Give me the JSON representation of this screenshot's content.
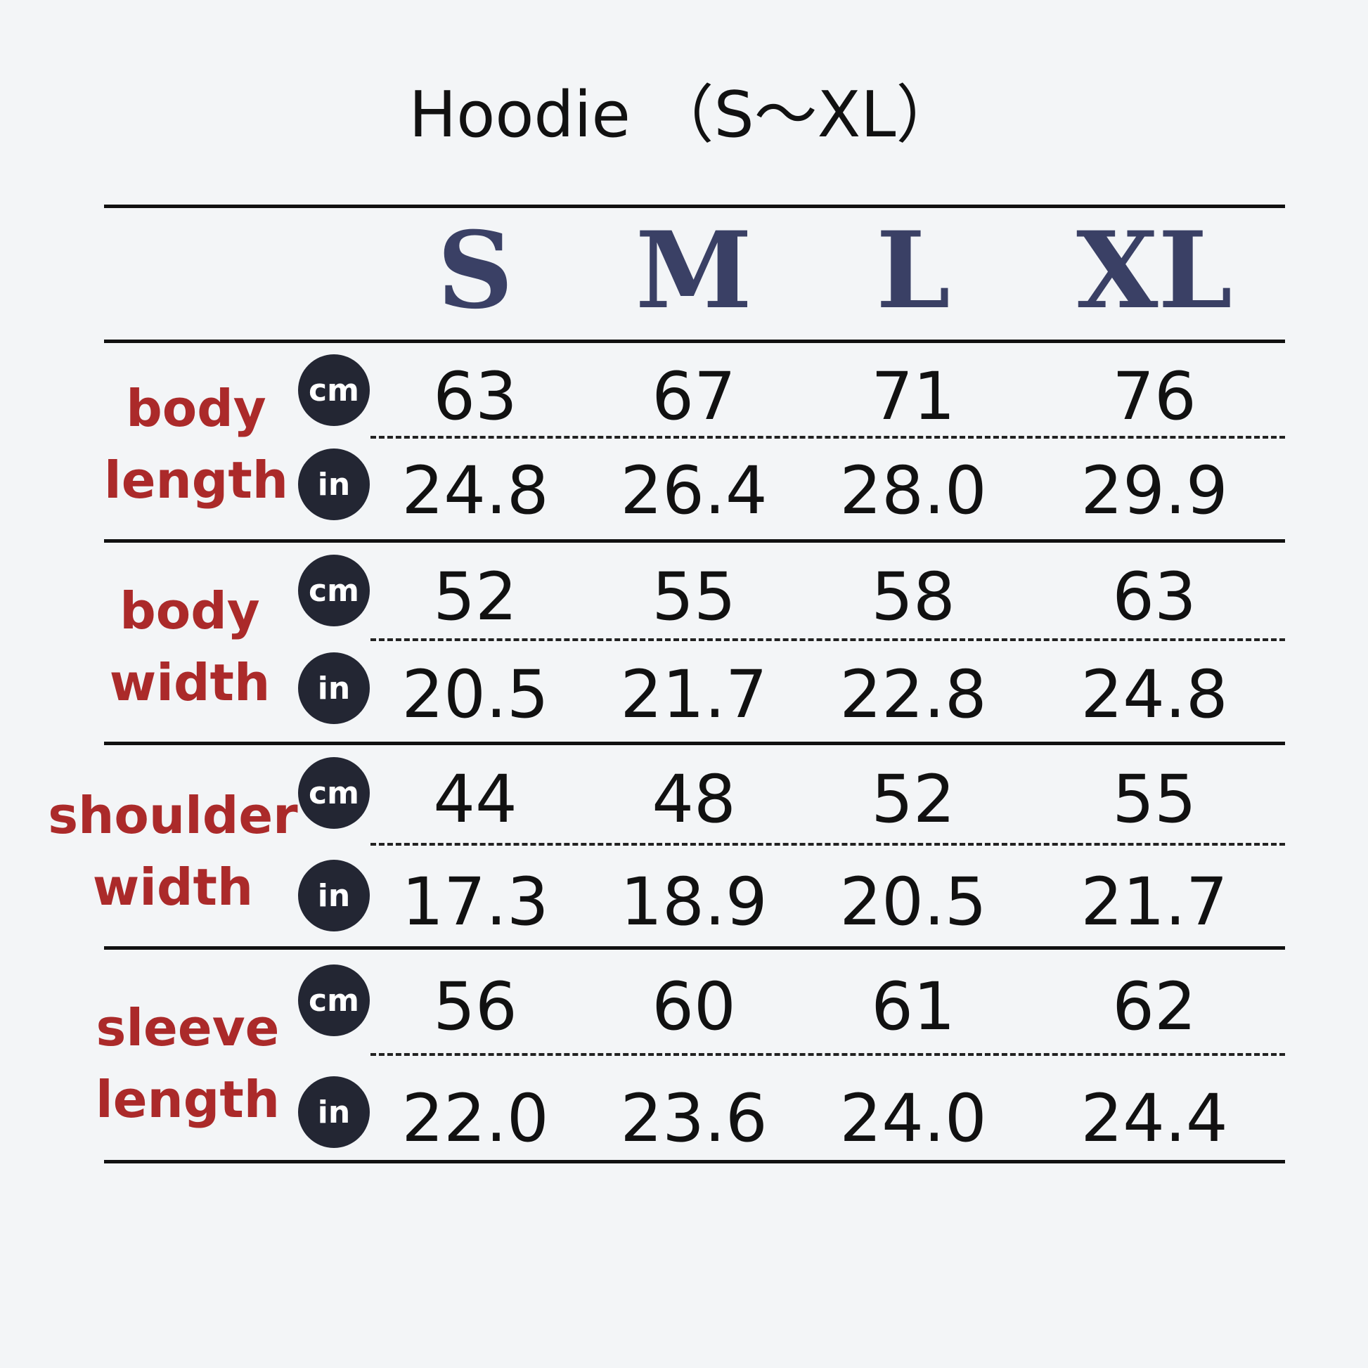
{
  "title": "Hoodie （S～XL）",
  "sizes": [
    "S",
    "M",
    "L",
    "XL"
  ],
  "units": {
    "cm": "cm",
    "in": "in"
  },
  "colors": {
    "label": "#ab2a2a",
    "header": "#3a4065",
    "unit_badge": "#232633",
    "background": "#f3f5f7"
  },
  "rows": [
    {
      "label1": "body",
      "label2": "length",
      "cm": [
        "63",
        "67",
        "71",
        "76"
      ],
      "in": [
        "24.8",
        "26.4",
        "28.0",
        "29.9"
      ]
    },
    {
      "label1": "body",
      "label2": "width",
      "cm": [
        "52",
        "55",
        "58",
        "63"
      ],
      "in": [
        "20.5",
        "21.7",
        "22.8",
        "24.8"
      ]
    },
    {
      "label1": "shoulder",
      "label2": "width",
      "cm": [
        "44",
        "48",
        "52",
        "55"
      ],
      "in": [
        "17.3",
        "18.9",
        "20.5",
        "21.7"
      ]
    },
    {
      "label1": "sleeve",
      "label2": "length",
      "cm": [
        "56",
        "60",
        "61",
        "62"
      ],
      "in": [
        "22.0",
        "23.6",
        "24.0",
        "24.4"
      ]
    }
  ]
}
